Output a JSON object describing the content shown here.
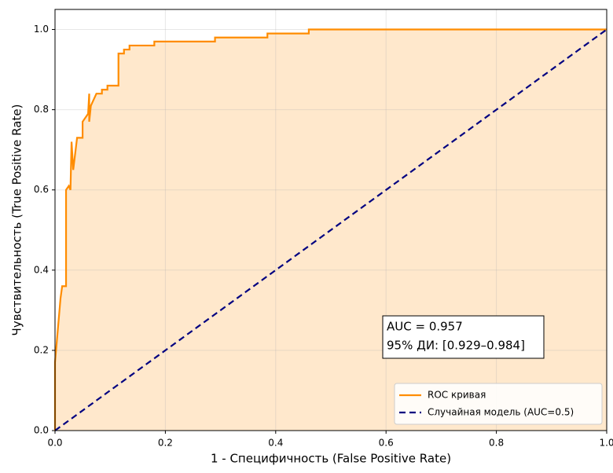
{
  "chart_data": {
    "type": "line",
    "xlabel": "1 - Специфичность (False Positive Rate)",
    "ylabel": "Чувствительность (True Positive Rate)",
    "xlim": [
      0,
      1
    ],
    "ylim": [
      0,
      1.05
    ],
    "xticks": [
      {
        "value": 0,
        "label": "0.0"
      },
      0.2,
      0.4,
      0.6,
      0.8,
      {
        "value": 1,
        "label": "1.0"
      }
    ],
    "yticks": [
      {
        "value": 0,
        "label": "0.0"
      },
      0.2,
      0.4,
      0.6,
      0.8,
      {
        "value": 1,
        "label": "1.0"
      }
    ],
    "grid": true,
    "legend": "lower right",
    "annotation": [
      "AUC = 0.957",
      "95% ДИ: [0.929–0.984]"
    ],
    "series": [
      {
        "name": "ROC кривая",
        "color": "#ff8c00",
        "fill": true,
        "dashed": false,
        "x": [
          0,
          0,
          0.005,
          0.01,
          0.013,
          0.02,
          0.02,
          0.025,
          0.028,
          0.03,
          0.033,
          0.04,
          0.05,
          0.05,
          0.06,
          0.062,
          0.062,
          0.065,
          0.075,
          0.085,
          0.085,
          0.095,
          0.095,
          0.115,
          0.115,
          0.125,
          0.125,
          0.135,
          0.135,
          0.18,
          0.18,
          0.29,
          0.29,
          0.385,
          0.385,
          0.46,
          0.46,
          1.0
        ],
        "values": [
          0,
          0.17,
          0.25,
          0.33,
          0.36,
          0.36,
          0.6,
          0.61,
          0.6,
          0.72,
          0.65,
          0.73,
          0.73,
          0.77,
          0.79,
          0.84,
          0.77,
          0.81,
          0.84,
          0.84,
          0.85,
          0.85,
          0.86,
          0.86,
          0.94,
          0.94,
          0.95,
          0.95,
          0.96,
          0.96,
          0.97,
          0.97,
          0.98,
          0.98,
          0.99,
          0.99,
          1.0,
          1.0
        ]
      },
      {
        "name": "Случайная модель (AUC=0.5)",
        "color": "#000080",
        "fill": false,
        "dashed": true,
        "x": [
          0,
          1
        ],
        "values": [
          0,
          1
        ]
      }
    ]
  }
}
